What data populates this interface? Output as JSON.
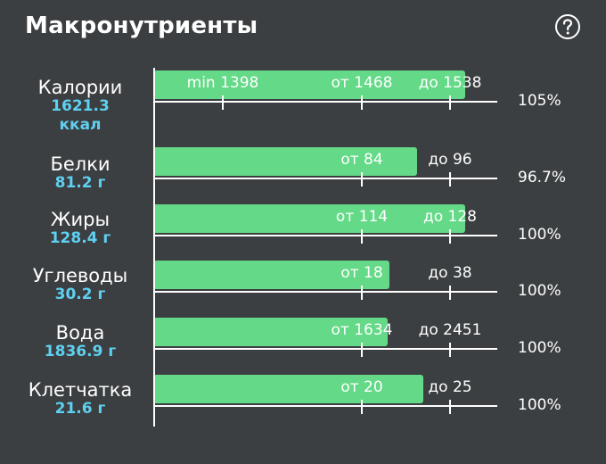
{
  "header": {
    "title": "Макронутриенты",
    "help_icon": "question-circle-icon"
  },
  "colors": {
    "background": "#3b3f41",
    "bar": "#64d987",
    "amount": "#5fd0f0",
    "text": "#ffffff"
  },
  "axis_max": 2475,
  "nutrients": [
    {
      "name": "Калории",
      "amount": "1621.3",
      "amount_unit": "ккал",
      "fill": 1.0,
      "percent": "105%",
      "marks": [
        {
          "label": "min 1398",
          "value": 1398
        },
        {
          "label": "от 1468",
          "value": 1468
        },
        {
          "label": "до 1538",
          "value": 1538
        }
      ]
    },
    {
      "name": "Белки",
      "amount": "81.2 г",
      "fill": 0.846,
      "percent": "96.7%",
      "marks": [
        {
          "label": "от 84",
          "value": 84
        },
        {
          "label": "до 96",
          "value": 96
        }
      ]
    },
    {
      "name": "Жиры",
      "amount": "128.4 г",
      "fill": 1.0,
      "percent": "100%",
      "marks": [
        {
          "label": "от 114",
          "value": 114
        },
        {
          "label": "до 128",
          "value": 128
        }
      ]
    },
    {
      "name": "Углеводы",
      "amount": "30.2 г",
      "fill": 0.755,
      "percent": "100%",
      "marks": [
        {
          "label": "от 18",
          "value": 18
        },
        {
          "label": "до 38",
          "value": 38
        }
      ]
    },
    {
      "name": "Вода",
      "amount": "1836.9 г",
      "fill": 0.75,
      "percent": "100%",
      "marks": [
        {
          "label": "от 1634",
          "value": 1634
        },
        {
          "label": "до 2451",
          "value": 2451
        }
      ]
    },
    {
      "name": "Клетчатка",
      "amount": "21.6 г",
      "fill": 0.864,
      "percent": "100%",
      "marks": [
        {
          "label": "от 20",
          "value": 20
        },
        {
          "label": "до 25",
          "value": 25
        }
      ]
    }
  ]
}
